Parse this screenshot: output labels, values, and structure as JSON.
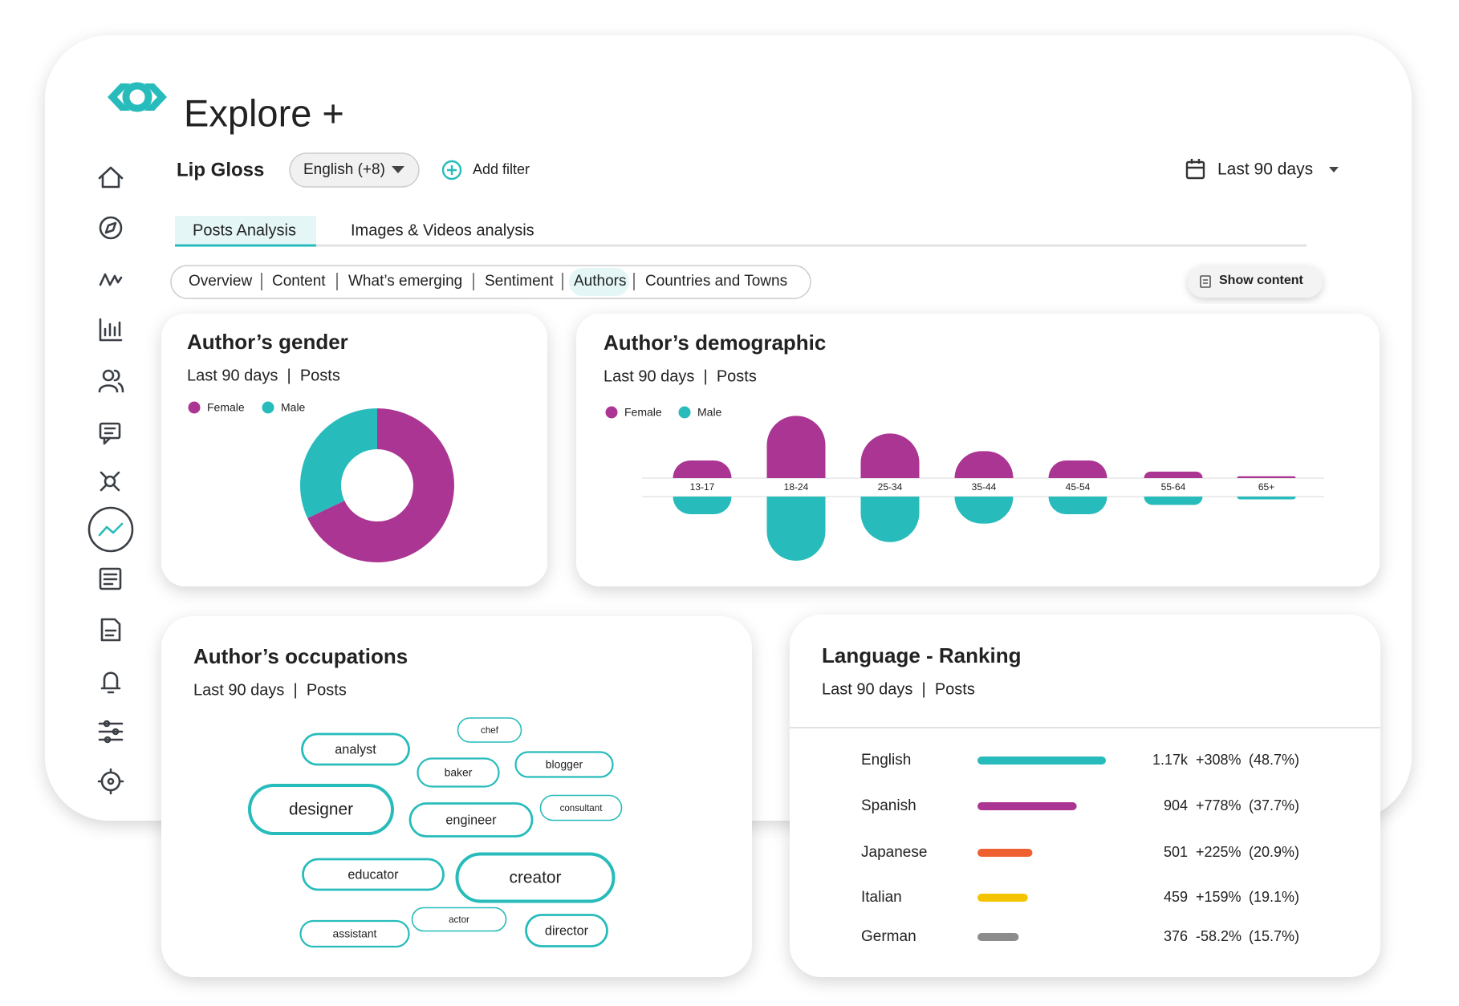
{
  "app": {
    "title": "Explore +",
    "query": "Lip Gloss",
    "language_filter": "English (+8)",
    "add_filter": "Add filter",
    "date_range": "Last 90 days",
    "tabs": [
      "Posts Analysis",
      "Images & Videos analysis"
    ],
    "subtabs": [
      "Overview",
      "Content",
      "What’s emerging",
      "Sentiment",
      "Authors",
      "Countries and Towns"
    ],
    "show_content": "Show content"
  },
  "chart_data": [
    {
      "type": "pie",
      "title": "Author’s gender",
      "subtitle": "Last 90 days  |  Posts",
      "categories": [
        "Female",
        "Male"
      ],
      "values": [
        68,
        32
      ],
      "colors": [
        "#ab3593",
        "#27bcbb"
      ]
    },
    {
      "type": "bar",
      "title": "Author’s demographic",
      "subtitle": "Last 90 days  |  Posts",
      "categories": [
        "13-17",
        "18-24",
        "25-34",
        "35-44",
        "45-54",
        "55-64",
        "65+"
      ],
      "series": [
        {
          "name": "Female",
          "color": "#ab3593",
          "values": [
            19,
            67,
            48,
            29,
            19,
            7,
            2
          ]
        },
        {
          "name": "Male",
          "color": "#27bcbb",
          "values": [
            19,
            69,
            49,
            29,
            19,
            9,
            3
          ]
        }
      ]
    },
    {
      "type": "wordcloud",
      "title": "Author’s occupations",
      "subtitle": "Last 90 days  |  Posts",
      "words": [
        "chef",
        "analyst",
        "baker",
        "blogger",
        "designer",
        "engineer",
        "consultant",
        "educator",
        "creator",
        "actor",
        "assistant",
        "director"
      ],
      "values": [
        1,
        3,
        2,
        2,
        5,
        3,
        1,
        3,
        5,
        1,
        2,
        3
      ],
      "color": "#27bcbb"
    },
    {
      "type": "ranking",
      "title": "Language - Ranking",
      "subtitle": "Last 90 days  |  Posts",
      "categories": [
        "English",
        "Spanish",
        "Japanese",
        "Italian",
        "German"
      ],
      "values": [
        1170,
        904,
        501,
        459,
        376
      ],
      "value_labels": [
        "1.17k",
        "904",
        "501",
        "459",
        "376"
      ],
      "changes": [
        "+308%",
        "+778%",
        "+225%",
        "+159%",
        "-58.2%"
      ],
      "shares": [
        "(48.7%)",
        "(37.7%)",
        "(20.9%)",
        "(19.1%)",
        "(15.7%)"
      ],
      "colors": [
        "#27bcbb",
        "#ab3593",
        "#ef6131",
        "#f5c400",
        "#8c8c8c"
      ]
    }
  ]
}
